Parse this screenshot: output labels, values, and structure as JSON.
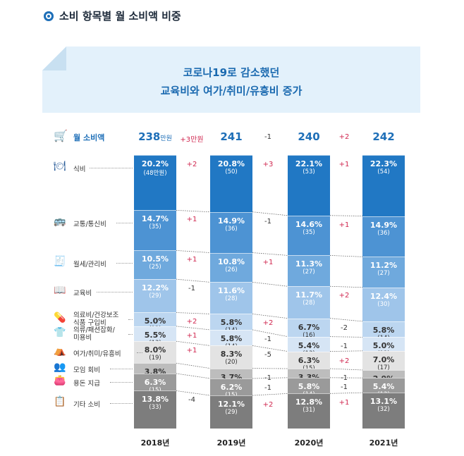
{
  "title": "소비 항목별 월 소비액 비중",
  "banner": {
    "line1": "코로나19로 감소했던",
    "line2": "교육비와 여가/취미/유흥비 증가"
  },
  "total_label": "월 소비액",
  "totals": [
    {
      "value": "238",
      "unit": "만원"
    },
    {
      "value": "241",
      "unit": ""
    },
    {
      "value": "240",
      "unit": ""
    },
    {
      "value": "242",
      "unit": ""
    }
  ],
  "total_diffs": [
    {
      "value": "+3",
      "unit": "만원",
      "sign": "pos"
    },
    {
      "value": "-1",
      "unit": "",
      "sign": "neg"
    },
    {
      "value": "+2",
      "unit": "",
      "sign": "pos"
    }
  ],
  "categories": [
    {
      "name": "식비",
      "lines": [
        "식비"
      ],
      "icon": "dining-icon",
      "glyph": "🍽"
    },
    {
      "name": "교통/통신비",
      "lines": [
        "교통/통신비"
      ],
      "icon": "bus-icon",
      "glyph": "🚌"
    },
    {
      "name": "월세/관리비",
      "lines": [
        "월세/관리비"
      ],
      "icon": "receipt-icon",
      "glyph": "🧾"
    },
    {
      "name": "교육비",
      "lines": [
        "교육비"
      ],
      "icon": "book-icon",
      "glyph": "📖"
    },
    {
      "name": "의료비/건강보조 식품 구입비",
      "lines": [
        "의료비/건강보조",
        "식품 구입비"
      ],
      "icon": "medical-icon",
      "glyph": "💊"
    },
    {
      "name": "의류/패션잡화/미용비",
      "lines": [
        "의류/패션잡화/",
        "미용비"
      ],
      "icon": "clothing-icon",
      "glyph": "👕"
    },
    {
      "name": "여가/취미/유흥비",
      "lines": [
        "여가/취미/유흥비"
      ],
      "icon": "tent-icon",
      "glyph": "⛺"
    },
    {
      "name": "모임 회비",
      "lines": [
        "모임 회비"
      ],
      "icon": "people-icon",
      "glyph": "👥"
    },
    {
      "name": "용돈 지급",
      "lines": [
        "용돈 지급"
      ],
      "icon": "wallet-icon",
      "glyph": "👛"
    },
    {
      "name": "기타 소비",
      "lines": [
        "기타 소비"
      ],
      "icon": "other-icon",
      "glyph": "📋"
    }
  ],
  "colors": [
    "#2178c4",
    "#4d93d3",
    "#6fa9dd",
    "#9fc5ea",
    "#bcd6f0",
    "#d6e5f5",
    "#e3e3e3",
    "#bdbdbd",
    "#9a9a9a",
    "#7d7d7d"
  ],
  "text_colors": [
    "#ffffff",
    "#ffffff",
    "#ffffff",
    "#ffffff",
    "#333333",
    "#333333",
    "#333333",
    "#333333",
    "#ffffff",
    "#ffffff"
  ],
  "chart_data": {
    "type": "bar",
    "stacked": true,
    "unit": "%",
    "categories": [
      "2018년",
      "2019년",
      "2020년",
      "2021년"
    ],
    "series": [
      {
        "name": "식비",
        "values": [
          20.2,
          20.8,
          22.1,
          22.3
        ],
        "amounts": [
          "48만원",
          "50",
          "53",
          "54"
        ],
        "diffs": [
          "+2",
          "+3",
          "+1"
        ]
      },
      {
        "name": "교통/통신비",
        "values": [
          14.7,
          14.9,
          14.6,
          14.9
        ],
        "amounts": [
          "35",
          "36",
          "35",
          "36"
        ],
        "diffs": [
          "+1",
          "-1",
          "+1"
        ]
      },
      {
        "name": "월세/관리비",
        "values": [
          10.5,
          10.8,
          11.3,
          11.2
        ],
        "amounts": [
          "25",
          "26",
          "27",
          "27"
        ],
        "diffs": [
          "+1",
          "+1",
          ""
        ]
      },
      {
        "name": "교육비",
        "values": [
          12.2,
          11.6,
          11.7,
          12.4
        ],
        "amounts": [
          "29",
          "28",
          "28",
          "30"
        ],
        "diffs": [
          "-1",
          "",
          "+2"
        ]
      },
      {
        "name": "의료비/건강보조 식품 구입비",
        "values": [
          5.0,
          5.8,
          6.7,
          5.8
        ],
        "amounts": [
          "12",
          "14",
          "16",
          "14"
        ],
        "diffs": [
          "+2",
          "+2",
          "-2"
        ]
      },
      {
        "name": "의류/패션잡화/미용비",
        "values": [
          5.5,
          5.8,
          5.4,
          5.0
        ],
        "amounts": [
          "13",
          "14",
          "13",
          "12"
        ],
        "diffs": [
          "+1",
          "-1",
          "-1"
        ]
      },
      {
        "name": "여가/취미/유흥비",
        "values": [
          8.0,
          8.3,
          6.3,
          7.0
        ],
        "amounts": [
          "19",
          "20",
          "15",
          "17"
        ],
        "diffs": [
          "+1",
          "-5",
          "+2"
        ]
      },
      {
        "name": "모임 회비",
        "values": [
          3.8,
          3.7,
          3.3,
          2.9
        ],
        "amounts": [
          "9",
          "9",
          "8",
          "7"
        ],
        "diffs": [
          "",
          "-1",
          "-1"
        ]
      },
      {
        "name": "용돈 지급",
        "values": [
          6.3,
          6.2,
          5.8,
          5.4
        ],
        "amounts": [
          "15",
          "15",
          "14",
          "13"
        ],
        "diffs": [
          "",
          "-1",
          "-1"
        ]
      },
      {
        "name": "기타 소비",
        "values": [
          13.8,
          12.1,
          12.8,
          13.1
        ],
        "amounts": [
          "33",
          "29",
          "31",
          "32"
        ],
        "diffs": [
          "-4",
          "+2",
          "+1"
        ]
      }
    ]
  }
}
